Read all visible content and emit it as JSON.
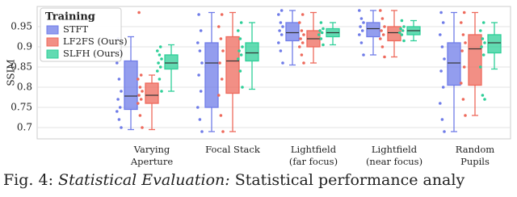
{
  "chart_data": {
    "type": "box",
    "ylabel": "SSIM",
    "legend_title": "Training",
    "legend": "upper left",
    "grid": true,
    "categories": [
      "Varying\nAperture",
      "Focal Stack",
      "Lightfield\n(far focus)",
      "Lightfield\n(near focus)",
      "Random\nPupils"
    ],
    "ylim": [
      0.672,
      1.0
    ],
    "yticks": [
      0.7,
      0.75,
      0.8,
      0.85,
      0.9,
      0.95
    ],
    "series": [
      {
        "name": "STFT",
        "color": "#6f7ce8",
        "min": [
          0.695,
          0.69,
          0.855,
          0.88,
          0.69
        ],
        "q1": [
          0.745,
          0.75,
          0.915,
          0.925,
          0.805
        ],
        "median": [
          0.778,
          0.86,
          0.935,
          0.945,
          0.86
        ],
        "q3": [
          0.865,
          0.91,
          0.96,
          0.96,
          0.91
        ],
        "max": [
          0.925,
          0.985,
          0.99,
          0.99,
          0.985
        ],
        "points": [
          [
            0.7,
            0.72,
            0.74,
            0.75,
            0.77,
            0.79,
            0.82,
            0.86,
            0.89,
            0.92
          ],
          [
            0.69,
            0.72,
            0.75,
            0.79,
            0.83,
            0.86,
            0.89,
            0.91,
            0.94,
            0.98
          ],
          [
            0.86,
            0.89,
            0.91,
            0.93,
            0.94,
            0.95,
            0.96,
            0.98,
            0.99
          ],
          [
            0.88,
            0.91,
            0.93,
            0.94,
            0.95,
            0.96,
            0.97,
            0.99
          ],
          [
            0.69,
            0.72,
            0.76,
            0.8,
            0.84,
            0.87,
            0.9,
            0.93,
            0.96,
            0.985
          ]
        ]
      },
      {
        "name": "LF2FS (Ours)",
        "color": "#ee6a5c",
        "min": [
          0.695,
          0.69,
          0.86,
          0.875,
          0.73
        ],
        "q1": [
          0.76,
          0.785,
          0.9,
          0.915,
          0.805
        ],
        "median": [
          0.78,
          0.865,
          0.92,
          0.935,
          0.895
        ],
        "q3": [
          0.81,
          0.925,
          0.94,
          0.95,
          0.93
        ],
        "max": [
          0.83,
          0.985,
          0.985,
          0.99,
          0.985
        ],
        "points": [
          [
            0.7,
            0.73,
            0.76,
            0.77,
            0.78,
            0.79,
            0.8,
            0.82,
            0.83,
            0.985
          ],
          [
            0.69,
            0.73,
            0.78,
            0.82,
            0.86,
            0.89,
            0.92,
            0.95,
            0.98
          ],
          [
            0.86,
            0.88,
            0.9,
            0.91,
            0.92,
            0.93,
            0.94,
            0.96,
            0.98
          ],
          [
            0.875,
            0.9,
            0.92,
            0.93,
            0.94,
            0.95,
            0.97,
            0.99
          ],
          [
            0.73,
            0.77,
            0.81,
            0.85,
            0.89,
            0.91,
            0.93,
            0.96,
            0.985
          ]
        ]
      },
      {
        "name": "SLFH (Ours)",
        "color": "#2ecf98",
        "min": [
          0.79,
          0.795,
          0.905,
          0.915,
          0.845
        ],
        "q1": [
          0.845,
          0.865,
          0.925,
          0.93,
          0.885
        ],
        "median": [
          0.86,
          0.885,
          0.935,
          0.94,
          0.91
        ],
        "q3": [
          0.88,
          0.91,
          0.945,
          0.95,
          0.93
        ],
        "max": [
          0.905,
          0.96,
          0.96,
          0.965,
          0.96
        ],
        "points": [
          [
            0.79,
            0.82,
            0.84,
            0.85,
            0.86,
            0.87,
            0.88,
            0.89,
            0.9
          ],
          [
            0.8,
            0.84,
            0.87,
            0.88,
            0.89,
            0.9,
            0.92,
            0.94,
            0.96
          ],
          [
            0.905,
            0.92,
            0.93,
            0.935,
            0.94,
            0.945,
            0.96
          ],
          [
            0.915,
            0.93,
            0.935,
            0.94,
            0.945,
            0.95,
            0.965
          ],
          [
            0.77,
            0.78,
            0.85,
            0.88,
            0.9,
            0.91,
            0.92,
            0.94,
            0.96
          ]
        ]
      }
    ]
  },
  "caption": {
    "label": "Fig. 4:",
    "title": "Statistical Evaluation:",
    "text": "Statistical performance analy"
  }
}
